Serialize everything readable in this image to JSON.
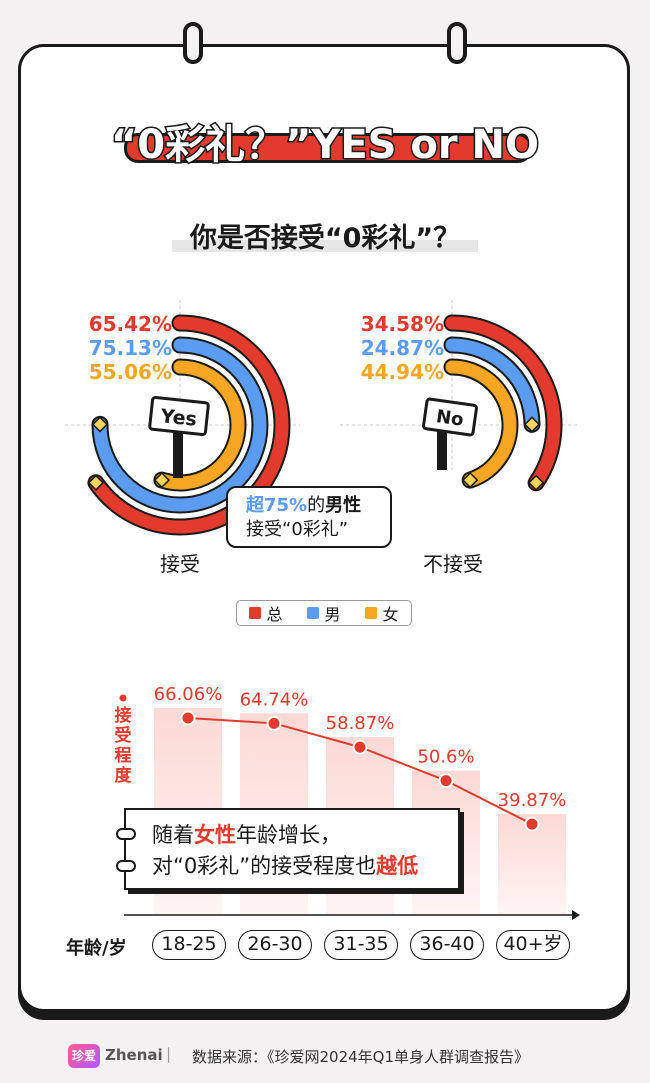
{
  "title": "“0彩礼？”YES or NO",
  "question": "你是否接受“0彩礼”？",
  "colors": {
    "total": "#e23b2e",
    "male": "#5b9bf0",
    "female": "#f6a623"
  },
  "donut_charts": [
    {
      "label": "接受",
      "sign": "Yes",
      "values": {
        "total": "65.42%",
        "male": "75.13%",
        "female": "55.06%"
      }
    },
    {
      "label": "不接受",
      "sign": "No",
      "values": {
        "total": "34.58%",
        "male": "24.87%",
        "female": "44.94%"
      }
    }
  ],
  "callout": {
    "part1": "超75%",
    "part2": "的",
    "part3": "男性",
    "line2": "接受“0彩礼”"
  },
  "legend": {
    "total": "总",
    "male": "男",
    "female": "女"
  },
  "age_chart_ylabel": "接受程度",
  "age_chart_xlabel": "年龄/岁",
  "note": {
    "l1a": "随着",
    "l1b": "女性",
    "l1c": "年龄增长，",
    "l2a": "对“0彩礼”的接受程度也",
    "l2b": "越低"
  },
  "watermark": "Zhenai",
  "footer": {
    "logo_text": "珍爱",
    "brand": "Zhenai",
    "separator": "|",
    "source": "数据来源：《珍爱网2024年Q1单身人群调查报告》"
  },
  "chart_data": [
    {
      "type": "pie",
      "title": "接受",
      "series": [
        {
          "name": "总",
          "value": 65.42
        },
        {
          "name": "男",
          "value": 75.13
        },
        {
          "name": "女",
          "value": 55.06
        }
      ]
    },
    {
      "type": "pie",
      "title": "不接受",
      "series": [
        {
          "name": "总",
          "value": 34.58
        },
        {
          "name": "男",
          "value": 24.87
        },
        {
          "name": "女",
          "value": 44.94
        }
      ]
    },
    {
      "type": "line",
      "xlabel": "年龄/岁",
      "ylabel": "接受程度",
      "categories": [
        "18-25",
        "26-30",
        "31-35",
        "36-40",
        "40+岁"
      ],
      "values": [
        66.06,
        64.74,
        58.87,
        50.6,
        39.87
      ],
      "value_labels": [
        "66.06%",
        "64.74%",
        "58.87%",
        "50.6%",
        "39.87%"
      ]
    }
  ]
}
